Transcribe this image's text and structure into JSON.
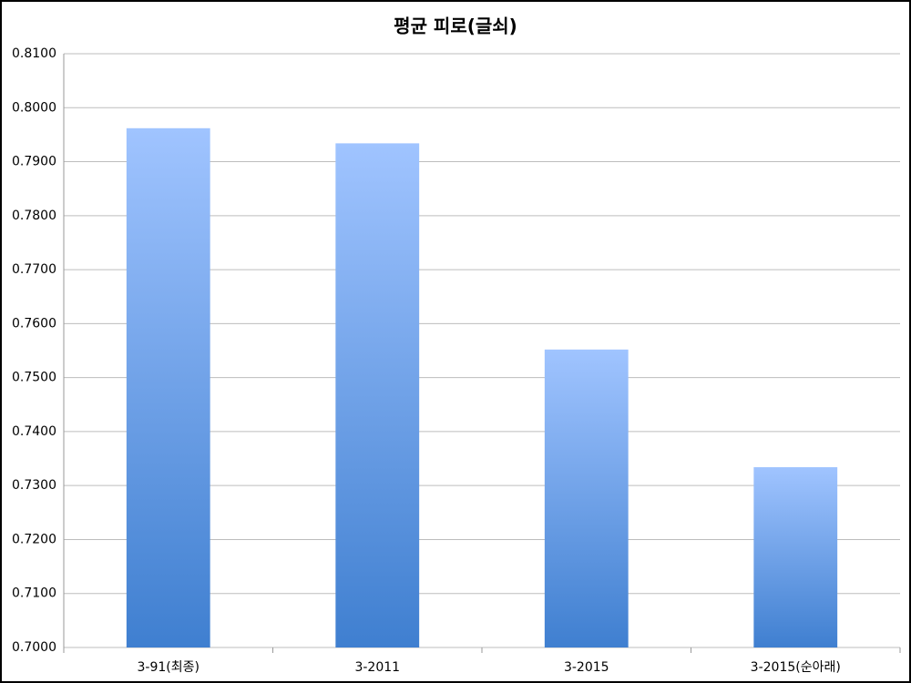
{
  "chart_data": {
    "type": "bar",
    "title": "평균 피로(글쇠)",
    "categories": [
      "3-91(최종)",
      "3-2011",
      "3-2015",
      "3-2015(순아래)"
    ],
    "values": [
      0.7962,
      0.7934,
      0.7552,
      0.7334
    ],
    "gradient": [
      "#a0c4ff",
      "#3f7fd0"
    ],
    "ylim": [
      0.7,
      0.81
    ],
    "yticks": [
      {
        "value": 0.7,
        "label": "0.7000"
      },
      {
        "value": 0.71,
        "label": "0.7100"
      },
      {
        "value": 0.72,
        "label": "0.7200"
      },
      {
        "value": 0.73,
        "label": "0.7300"
      },
      {
        "value": 0.74,
        "label": "0.7400"
      },
      {
        "value": 0.75,
        "label": "0.7500"
      },
      {
        "value": 0.76,
        "label": "0.7600"
      },
      {
        "value": 0.77,
        "label": "0.7700"
      },
      {
        "value": 0.78,
        "label": "0.7800"
      },
      {
        "value": 0.79,
        "label": "0.7900"
      },
      {
        "value": 0.8,
        "label": "0.8000"
      },
      {
        "value": 0.81,
        "label": "0.8100"
      }
    ],
    "grid": true
  }
}
